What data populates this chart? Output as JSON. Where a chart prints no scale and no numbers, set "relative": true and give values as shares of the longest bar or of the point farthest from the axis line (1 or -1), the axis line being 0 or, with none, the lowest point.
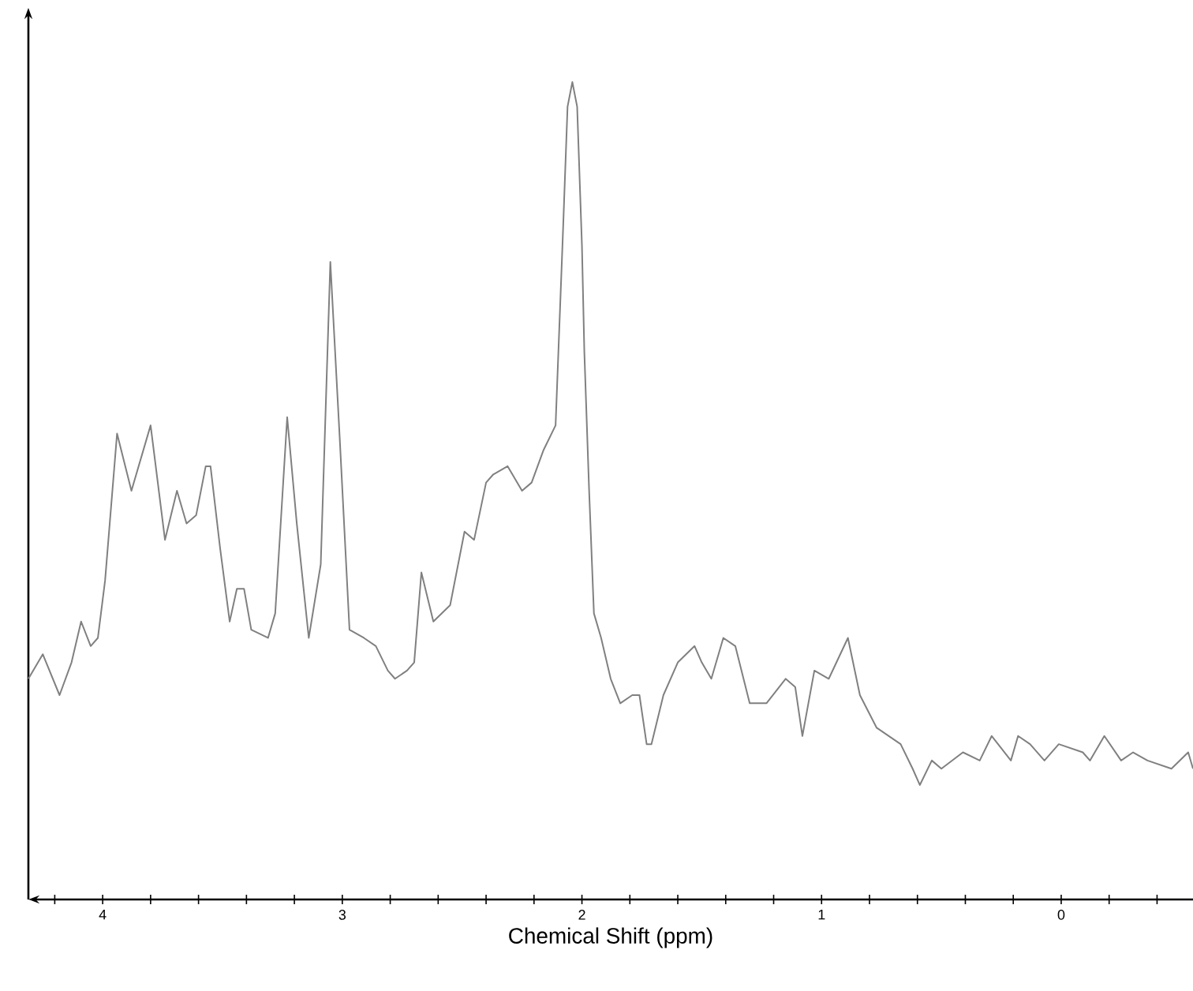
{
  "chart_data": {
    "type": "line",
    "relative": true,
    "xlabel": "Chemical Shift (ppm)",
    "xlim": [
      4.31,
      -0.55
    ],
    "xticks": [
      {
        "value": 4.2,
        "label": null
      },
      4,
      {
        "value": 3.8,
        "label": null
      },
      {
        "value": 3.6,
        "label": null
      },
      {
        "value": 3.4,
        "label": null
      },
      {
        "value": 3.2,
        "label": null
      },
      3,
      {
        "value": 2.8,
        "label": null
      },
      {
        "value": 2.6,
        "label": null
      },
      {
        "value": 2.4,
        "label": null
      },
      {
        "value": 2.2,
        "label": null
      },
      2,
      {
        "value": 1.8,
        "label": null
      },
      {
        "value": 1.6,
        "label": null
      },
      {
        "value": 1.4,
        "label": null
      },
      {
        "value": 1.2,
        "label": null
      },
      1,
      {
        "value": 0.8,
        "label": null
      },
      {
        "value": 0.6,
        "label": null
      },
      {
        "value": 0.4,
        "label": null
      },
      {
        "value": 0.2,
        "label": null
      },
      0,
      {
        "value": -0.2,
        "label": null
      },
      {
        "value": -0.4,
        "label": null
      }
    ],
    "grid": false,
    "marker": "none",
    "line_style": "solid",
    "x": [
      4.31,
      4.25,
      4.18,
      4.13,
      4.09,
      4.05,
      4.02,
      3.99,
      3.94,
      3.88,
      3.8,
      3.74,
      3.69,
      3.65,
      3.61,
      3.57,
      3.55,
      3.51,
      3.47,
      3.44,
      3.41,
      3.38,
      3.31,
      3.28,
      3.23,
      3.19,
      3.14,
      3.09,
      3.05,
      3.01,
      2.97,
      2.91,
      2.86,
      2.81,
      2.78,
      2.73,
      2.7,
      2.67,
      2.62,
      2.55,
      2.49,
      2.45,
      2.4,
      2.37,
      2.31,
      2.25,
      2.21,
      2.16,
      2.11,
      2.08,
      2.06,
      2.04,
      2.02,
      2.0,
      1.99,
      1.97,
      1.95,
      1.92,
      1.88,
      1.84,
      1.79,
      1.76,
      1.73,
      1.71,
      1.66,
      1.6,
      1.53,
      1.5,
      1.46,
      1.41,
      1.36,
      1.3,
      1.23,
      1.15,
      1.11,
      1.08,
      1.03,
      0.97,
      0.89,
      0.84,
      0.77,
      0.67,
      0.62,
      0.59,
      0.54,
      0.5,
      0.41,
      0.34,
      0.29,
      0.21,
      0.18,
      0.13,
      0.07,
      0.01,
      -0.09,
      -0.12,
      -0.18,
      -0.25,
      -0.3,
      -0.36,
      -0.46,
      -0.53,
      -0.55
    ],
    "series": [
      {
        "color": "#808080",
        "values": [
          0.27,
          0.3,
          0.25,
          0.29,
          0.34,
          0.31,
          0.32,
          0.39,
          0.57,
          0.5,
          0.58,
          0.44,
          0.5,
          0.46,
          0.47,
          0.53,
          0.53,
          0.43,
          0.34,
          0.38,
          0.38,
          0.33,
          0.32,
          0.35,
          0.59,
          0.46,
          0.32,
          0.41,
          0.78,
          0.56,
          0.33,
          0.32,
          0.31,
          0.28,
          0.27,
          0.28,
          0.29,
          0.4,
          0.34,
          0.36,
          0.45,
          0.44,
          0.51,
          0.52,
          0.53,
          0.5,
          0.51,
          0.55,
          0.58,
          0.81,
          0.97,
          1.0,
          0.97,
          0.8,
          0.67,
          0.5,
          0.35,
          0.32,
          0.27,
          0.24,
          0.25,
          0.25,
          0.19,
          0.19,
          0.25,
          0.29,
          0.31,
          0.29,
          0.27,
          0.32,
          0.31,
          0.24,
          0.24,
          0.27,
          0.26,
          0.2,
          0.28,
          0.27,
          0.32,
          0.25,
          0.21,
          0.19,
          0.16,
          0.14,
          0.17,
          0.16,
          0.18,
          0.17,
          0.2,
          0.17,
          0.2,
          0.19,
          0.17,
          0.19,
          0.18,
          0.17,
          0.2,
          0.17,
          0.18,
          0.17,
          0.16,
          0.18,
          0.16
        ]
      }
    ]
  }
}
